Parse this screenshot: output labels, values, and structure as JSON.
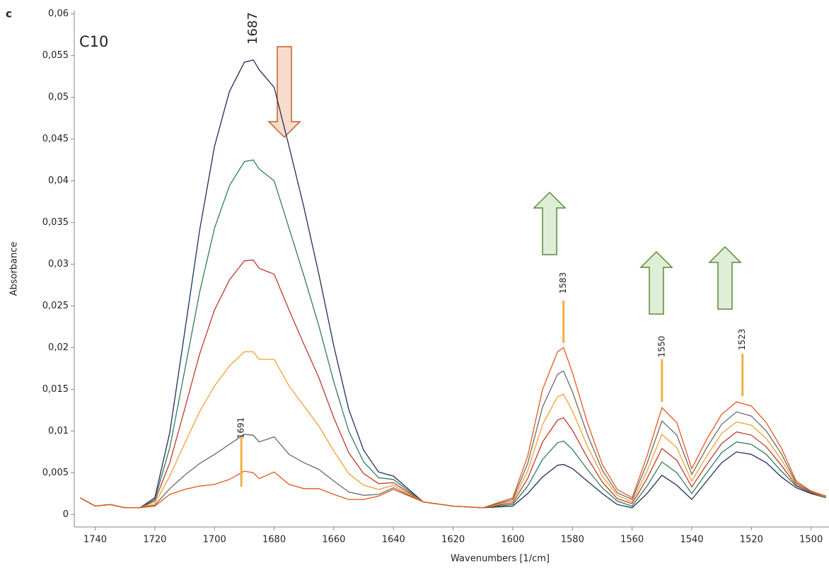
{
  "chart_data": {
    "type": "line",
    "panel_label": "c",
    "sample_label": "C10",
    "x_label": "Wavenumbers [1/cm]",
    "y_label": "Absorbance",
    "xlim": [
      1747,
      1494
    ],
    "ylim": [
      -0.0015,
      0.0604
    ],
    "xticks": [
      1740,
      1720,
      1700,
      1680,
      1660,
      1640,
      1620,
      1600,
      1580,
      1560,
      1540,
      1520,
      1500
    ],
    "yticks": [
      0,
      {
        "value": 0.005,
        "label": "0,005"
      },
      {
        "value": 0.01,
        "label": "0,01"
      },
      {
        "value": 0.015,
        "label": "0,015"
      },
      {
        "value": 0.02,
        "label": "0,02"
      },
      {
        "value": 0.025,
        "label": "0,025"
      },
      {
        "value": 0.03,
        "label": "0,03"
      },
      {
        "value": 0.035,
        "label": "0,035"
      },
      {
        "value": 0.04,
        "label": "0,04"
      },
      {
        "value": 0.045,
        "label": "0,045"
      },
      {
        "value": 0.05,
        "label": "0,05"
      },
      {
        "value": 0.055,
        "label": "0,055"
      },
      {
        "value": 0.06,
        "label": "0,06"
      }
    ],
    "peak_labels": [
      1687,
      1691,
      1583,
      1550,
      1523
    ],
    "x": [
      1745,
      1740,
      1735,
      1730,
      1725,
      1720,
      1715,
      1710,
      1705,
      1700,
      1695,
      1690,
      1687,
      1685,
      1680,
      1675,
      1670,
      1665,
      1660,
      1655,
      1650,
      1645,
      1640,
      1630,
      1620,
      1610,
      1600,
      1595,
      1590,
      1585,
      1583,
      1580,
      1575,
      1570,
      1565,
      1560,
      1555,
      1550,
      1545,
      1540,
      1535,
      1530,
      1525,
      1520,
      1515,
      1510,
      1505,
      1500,
      1495
    ],
    "series": [
      {
        "color": "#1f2d5c",
        "values": [
          0.002,
          0.001,
          0.0012,
          0.0008,
          0.0008,
          0.002,
          0.0098,
          0.0218,
          0.034,
          0.0441,
          0.0507,
          0.0542,
          0.0545,
          0.0533,
          0.0512,
          0.0441,
          0.0368,
          0.0288,
          0.0202,
          0.0126,
          0.0077,
          0.0051,
          0.0046,
          0.0015,
          0.001,
          0.0008,
          0.001,
          0.0025,
          0.0045,
          0.0059,
          0.006,
          0.0055,
          0.004,
          0.0025,
          0.0012,
          0.0008,
          0.0025,
          0.0047,
          0.0035,
          0.0018,
          0.004,
          0.0062,
          0.0075,
          0.0072,
          0.0062,
          0.0045,
          0.0032,
          0.0025,
          0.002
        ]
      },
      {
        "color": "#2e7d5b",
        "values": [
          0.002,
          0.001,
          0.0012,
          0.0008,
          0.0008,
          0.0018,
          0.008,
          0.0172,
          0.0266,
          0.0343,
          0.0394,
          0.0423,
          0.0425,
          0.0414,
          0.04,
          0.0343,
          0.0286,
          0.0226,
          0.0159,
          0.01,
          0.0063,
          0.0044,
          0.0042,
          0.0015,
          0.001,
          0.0008,
          0.0012,
          0.0034,
          0.0066,
          0.0086,
          0.0088,
          0.0078,
          0.0054,
          0.0032,
          0.0016,
          0.001,
          0.0034,
          0.0063,
          0.005,
          0.0025,
          0.005,
          0.0074,
          0.0087,
          0.0084,
          0.0072,
          0.0052,
          0.0034,
          0.0026,
          0.002
        ]
      },
      {
        "color": "#c0392b",
        "values": [
          0.002,
          0.001,
          0.0012,
          0.0008,
          0.0008,
          0.0016,
          0.0062,
          0.0126,
          0.0192,
          0.0245,
          0.0281,
          0.0304,
          0.0305,
          0.0295,
          0.0288,
          0.0245,
          0.0204,
          0.0164,
          0.0116,
          0.0074,
          0.0049,
          0.0037,
          0.0038,
          0.0015,
          0.001,
          0.0008,
          0.0014,
          0.0043,
          0.0087,
          0.0113,
          0.0116,
          0.0101,
          0.0068,
          0.0039,
          0.0019,
          0.0013,
          0.0043,
          0.0079,
          0.0065,
          0.0033,
          0.006,
          0.0085,
          0.0099,
          0.0095,
          0.0081,
          0.0059,
          0.0035,
          0.0026,
          0.0021
        ]
      },
      {
        "color": "#f0a030",
        "values": [
          0.002,
          0.001,
          0.0012,
          0.0008,
          0.0008,
          0.0013,
          0.0046,
          0.0085,
          0.0123,
          0.0154,
          0.0178,
          0.0195,
          0.0195,
          0.0186,
          0.0186,
          0.0154,
          0.013,
          0.0106,
          0.0076,
          0.0049,
          0.0035,
          0.003,
          0.0035,
          0.0015,
          0.001,
          0.0008,
          0.0016,
          0.0052,
          0.0108,
          0.0141,
          0.0144,
          0.0124,
          0.0082,
          0.0046,
          0.0023,
          0.0015,
          0.0052,
          0.0096,
          0.008,
          0.004,
          0.007,
          0.0097,
          0.0111,
          0.0107,
          0.0091,
          0.0066,
          0.0037,
          0.0027,
          0.0021
        ]
      },
      {
        "color": "#6a6a6a",
        "values": [
          0.002,
          0.001,
          0.0012,
          0.0008,
          0.0008,
          0.0011,
          0.0031,
          0.0047,
          0.0061,
          0.0072,
          0.0084,
          0.0096,
          0.0095,
          0.0087,
          0.0093,
          0.0072,
          0.0062,
          0.0054,
          0.004,
          0.0027,
          0.0023,
          0.0024,
          0.0032,
          0.0015,
          0.001,
          0.0008,
          0.0018,
          0.0061,
          0.0129,
          0.0168,
          0.0172,
          0.0147,
          0.0096,
          0.0053,
          0.0026,
          0.0018,
          0.0061,
          0.0112,
          0.0095,
          0.0048,
          0.008,
          0.0108,
          0.0123,
          0.0118,
          0.01,
          0.0073,
          0.0038,
          0.0027,
          0.0022
        ]
      },
      {
        "color": "#e8541e",
        "values": [
          0.002,
          0.001,
          0.0012,
          0.0008,
          0.0008,
          0.001,
          0.0024,
          0.003,
          0.0034,
          0.0036,
          0.0042,
          0.0052,
          0.005,
          0.0043,
          0.0051,
          0.0036,
          0.0031,
          0.0031,
          0.0024,
          0.0018,
          0.0018,
          0.0022,
          0.003,
          0.0015,
          0.001,
          0.0008,
          0.002,
          0.007,
          0.015,
          0.0195,
          0.02,
          0.017,
          0.011,
          0.006,
          0.003,
          0.002,
          0.007,
          0.0128,
          0.011,
          0.0055,
          0.009,
          0.012,
          0.0135,
          0.013,
          0.011,
          0.008,
          0.004,
          0.0028,
          0.0022
        ]
      }
    ]
  }
}
